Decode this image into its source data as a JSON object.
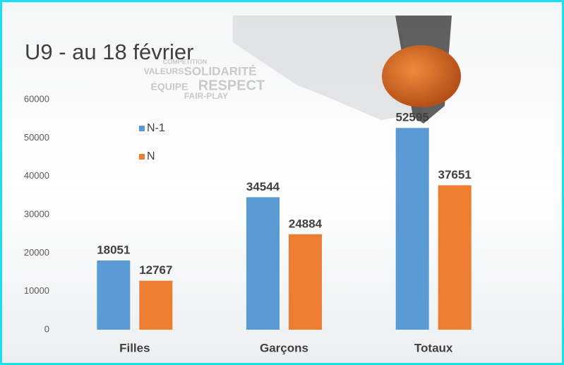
{
  "chart_data": {
    "type": "bar",
    "title": "U9 - au 18 février",
    "annotations": [
      "COMPETITION",
      "VALEURS",
      "SOLIDARITÉ",
      "ÉQUIPE",
      "RESPECT",
      "FAIR-PLAY"
    ],
    "categories": [
      "Filles",
      "Garçons",
      "Totaux"
    ],
    "series": [
      {
        "name": "N-1",
        "color": "#5b9bd5",
        "values": [
          18051,
          34544,
          52595
        ]
      },
      {
        "name": "N",
        "color": "#ed7d31",
        "values": [
          12767,
          24884,
          37651
        ]
      }
    ],
    "ylim": [
      0,
      60000
    ],
    "yticks": [
      0,
      10000,
      20000,
      30000,
      40000,
      50000,
      60000
    ],
    "grid": false,
    "legend": "upper left"
  }
}
